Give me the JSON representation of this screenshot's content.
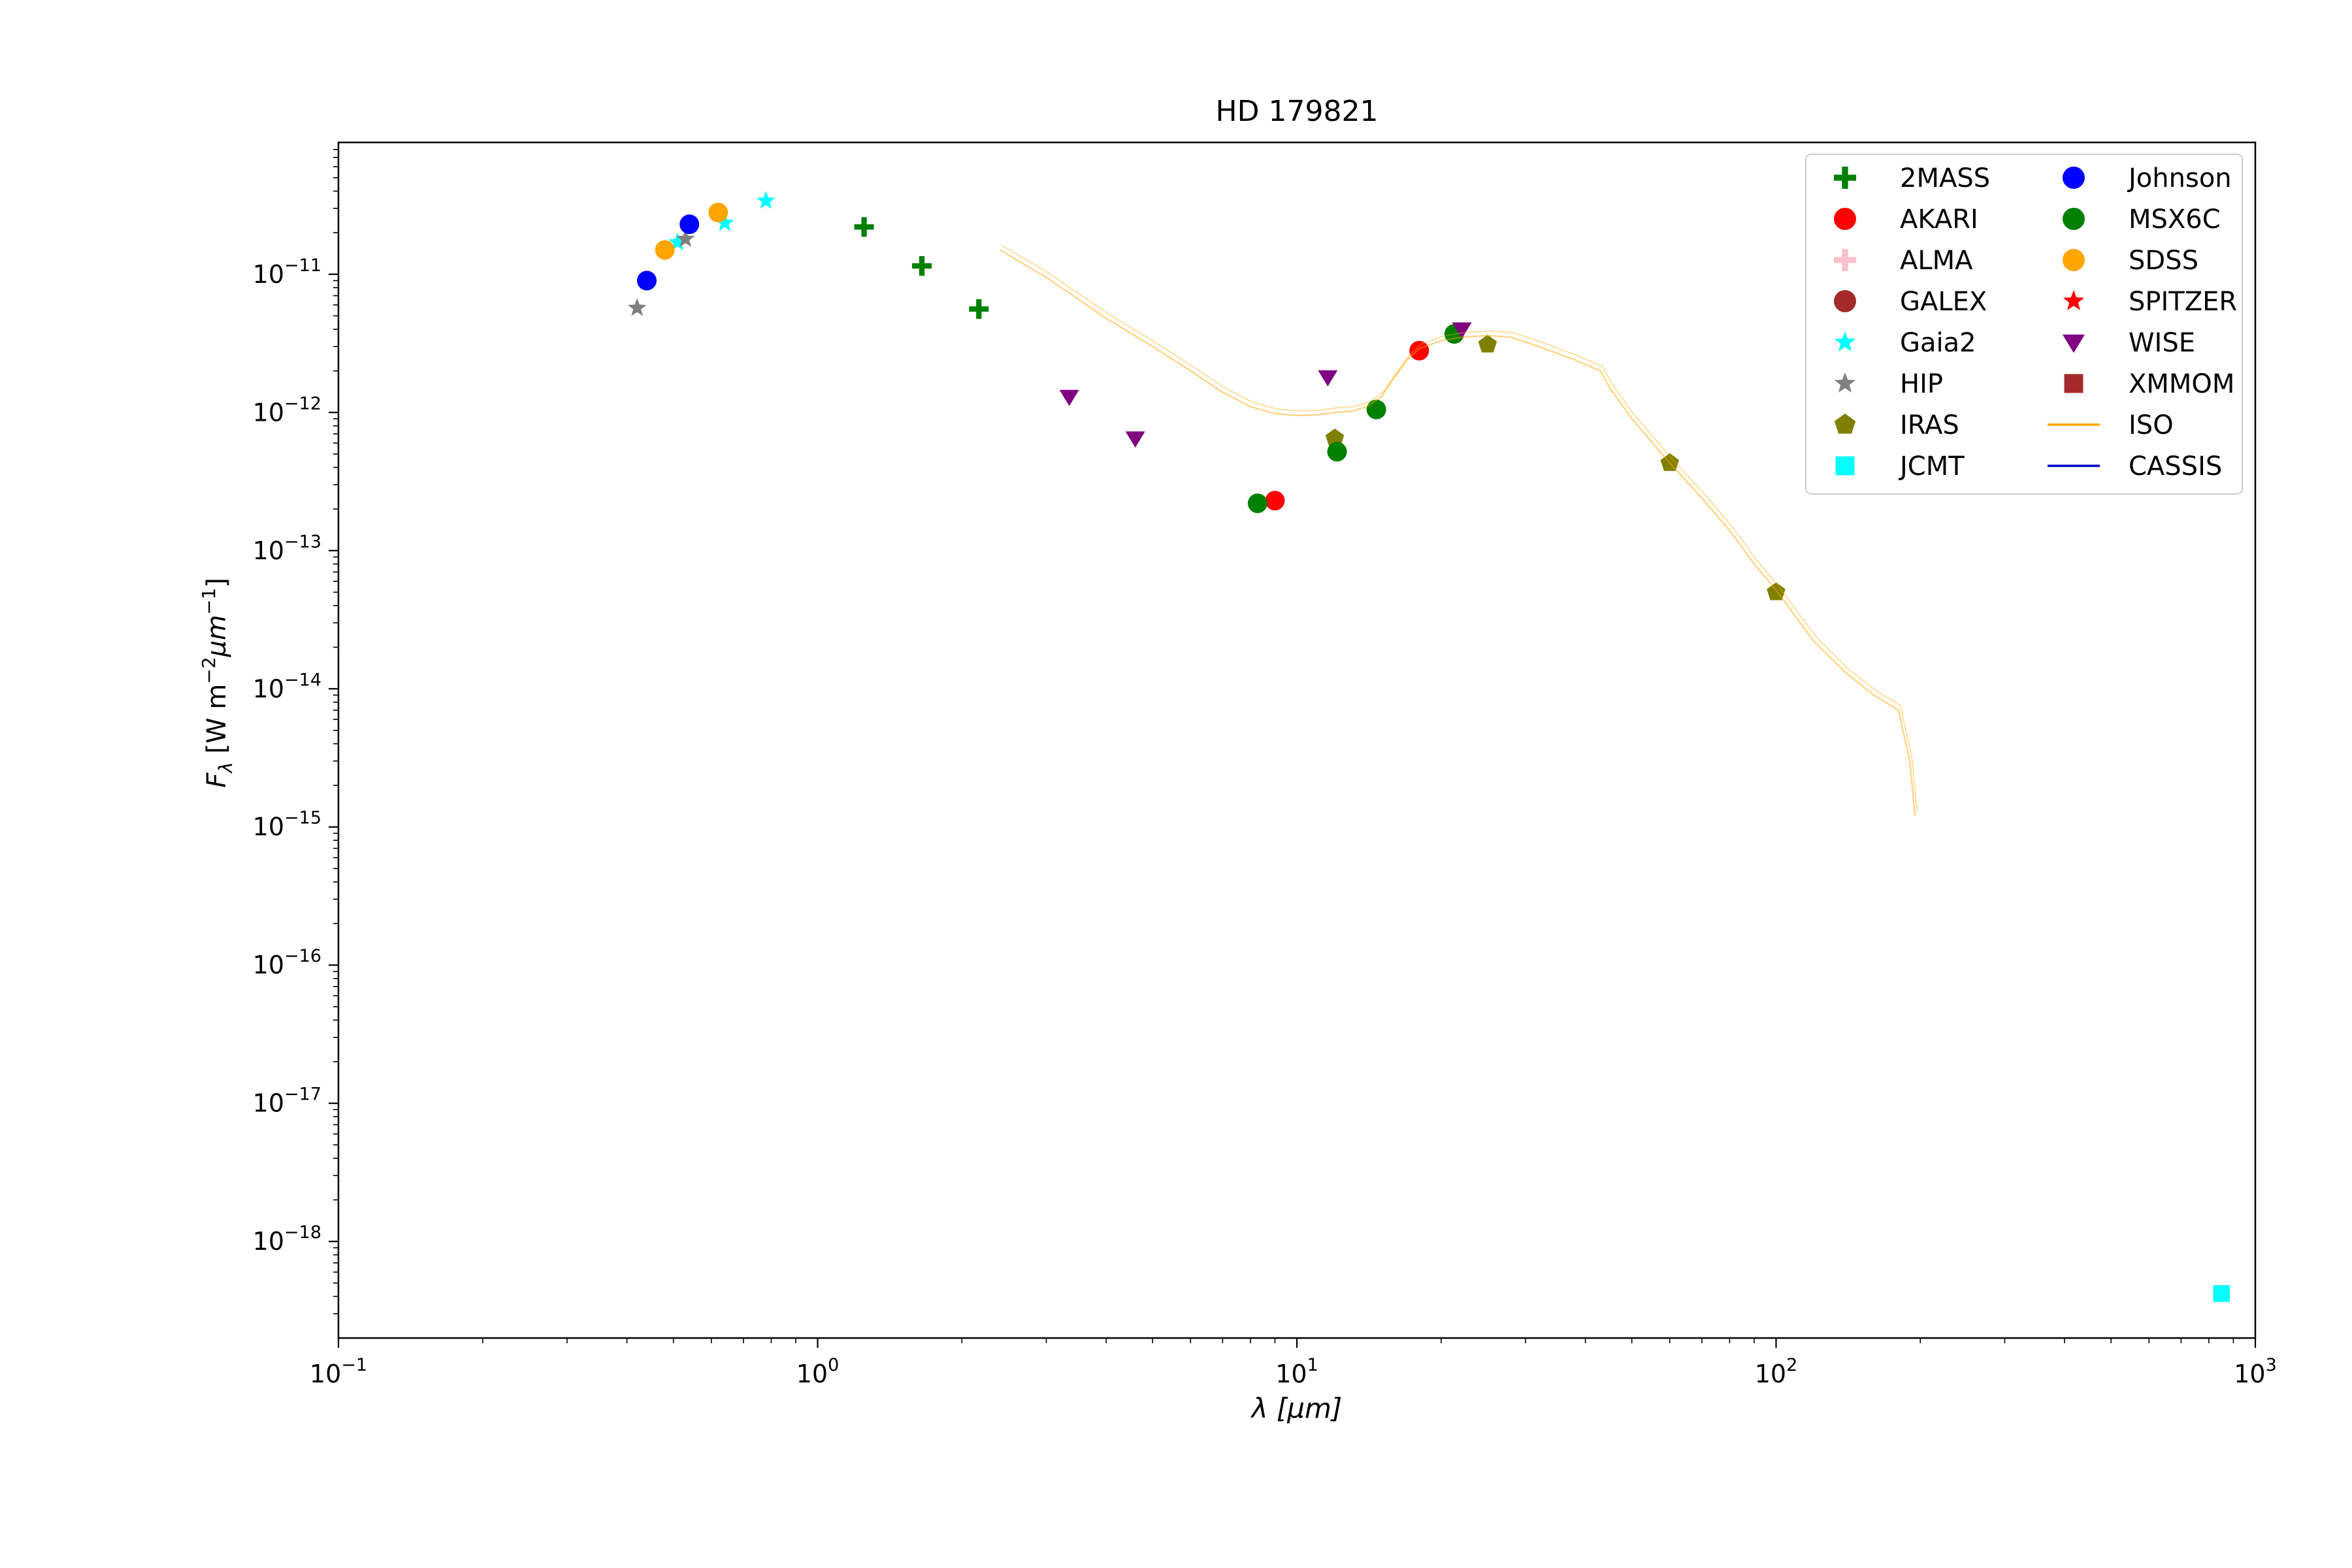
{
  "chart_data": {
    "type": "scatter",
    "title": "HD 179821",
    "xlabel": "λ [μm]",
    "ylabel": "F_λ [W m^-2 μm^-1]",
    "xscale": "log",
    "yscale": "log",
    "xlim": [
      0.1,
      1000
    ],
    "ylim": [
      2e-19,
      9e-11
    ],
    "x_ticks": [
      {
        "base": "10",
        "exp": "−1",
        "value": 0.1
      },
      {
        "base": "10",
        "exp": "0",
        "value": 1
      },
      {
        "base": "10",
        "exp": "1",
        "value": 10
      },
      {
        "base": "10",
        "exp": "2",
        "value": 100
      },
      {
        "base": "10",
        "exp": "3",
        "value": 1000
      }
    ],
    "y_ticks": [
      {
        "base": "10",
        "exp": "−18",
        "value": 1e-18
      },
      {
        "base": "10",
        "exp": "−17",
        "value": 1e-17
      },
      {
        "base": "10",
        "exp": "−16",
        "value": 1e-16
      },
      {
        "base": "10",
        "exp": "−15",
        "value": 1e-15
      },
      {
        "base": "10",
        "exp": "−14",
        "value": 1e-14
      },
      {
        "base": "10",
        "exp": "−13",
        "value": 1e-13
      },
      {
        "base": "10",
        "exp": "−12",
        "value": 1e-12
      },
      {
        "base": "10",
        "exp": "−11",
        "value": 1e-11
      }
    ],
    "legend_position": "top-right",
    "legend_columns": 2,
    "series": [
      {
        "name": "2MASS",
        "marker": "plus",
        "color": "#008000",
        "points": [
          [
            1.25,
            2.2e-11
          ],
          [
            1.65,
            1.15e-11
          ],
          [
            2.17,
            5.6e-12
          ]
        ]
      },
      {
        "name": "AKARI",
        "marker": "circle",
        "color": "#ff0000",
        "points": [
          [
            9.0,
            2.3e-13
          ],
          [
            18.0,
            2.8e-12
          ]
        ]
      },
      {
        "name": "ALMA",
        "marker": "plus",
        "color": "#ffc0cb",
        "points": []
      },
      {
        "name": "GALEX",
        "marker": "circle",
        "color": "#a52a2a",
        "points": []
      },
      {
        "name": "Gaia2",
        "marker": "star",
        "color": "#00ffff",
        "points": [
          [
            0.51,
            1.7e-11
          ],
          [
            0.64,
            2.35e-11
          ],
          [
            0.78,
            3.4e-11
          ]
        ]
      },
      {
        "name": "HIP",
        "marker": "star",
        "color": "#808080",
        "points": [
          [
            0.42,
            5.7e-12
          ],
          [
            0.53,
            1.8e-11
          ]
        ]
      },
      {
        "name": "IRAS",
        "marker": "pentagon",
        "color": "#808000",
        "points": [
          [
            12.0,
            6.5e-13
          ],
          [
            25.0,
            3.1e-12
          ],
          [
            60.0,
            4.3e-13
          ],
          [
            100.0,
            5e-14
          ]
        ]
      },
      {
        "name": "JCMT",
        "marker": "square",
        "color": "#00ffff",
        "points": [
          [
            850.0,
            4.2e-19
          ]
        ]
      },
      {
        "name": "Johnson",
        "marker": "circle",
        "color": "#0000ff",
        "points": [
          [
            0.44,
            9e-12
          ],
          [
            0.54,
            2.3e-11
          ]
        ]
      },
      {
        "name": "MSX6C",
        "marker": "circle",
        "color": "#008000",
        "points": [
          [
            8.28,
            2.2e-13
          ],
          [
            12.13,
            5.2e-13
          ],
          [
            14.65,
            1.05e-12
          ],
          [
            21.3,
            3.7e-12
          ]
        ]
      },
      {
        "name": "SDSS",
        "marker": "circle",
        "color": "#ffa500",
        "points": [
          [
            0.48,
            1.5e-11
          ],
          [
            0.62,
            2.8e-11
          ]
        ]
      },
      {
        "name": "SPITZER",
        "marker": "star",
        "color": "#ff0000",
        "points": []
      },
      {
        "name": "WISE",
        "marker": "triangle-down",
        "color": "#800080",
        "points": [
          [
            3.35,
            1.3e-12
          ],
          [
            4.6,
            6.5e-13
          ],
          [
            11.6,
            1.8e-12
          ],
          [
            22.1,
            4e-12
          ]
        ]
      },
      {
        "name": "XMMOM",
        "marker": "square",
        "color": "#a52a2a",
        "points": []
      },
      {
        "name": "ISO",
        "marker": "line",
        "color": "#ffa500",
        "points": [
          [
            2.4,
            1.5e-11
          ],
          [
            3.0,
            9.5e-12
          ],
          [
            4.0,
            4.8e-12
          ],
          [
            5.0,
            3e-12
          ],
          [
            6.0,
            2e-12
          ],
          [
            7.0,
            1.4e-12
          ],
          [
            8.0,
            1.1e-12
          ],
          [
            9.0,
            9.8e-13
          ],
          [
            10.0,
            9.5e-13
          ],
          [
            11.0,
            9.6e-13
          ],
          [
            12.0,
            1e-12
          ],
          [
            13.0,
            1.02e-12
          ],
          [
            14.0,
            1.1e-12
          ],
          [
            15.0,
            1.3e-12
          ],
          [
            16.0,
            1.8e-12
          ],
          [
            17.0,
            2.4e-12
          ],
          [
            18.0,
            2.9e-12
          ],
          [
            20.0,
            3.3e-12
          ],
          [
            22.0,
            3.5e-12
          ],
          [
            25.0,
            3.6e-12
          ],
          [
            28.0,
            3.5e-12
          ],
          [
            32.0,
            3e-12
          ],
          [
            38.0,
            2.4e-12
          ],
          [
            43.0,
            2e-12
          ],
          [
            45.0,
            1.5e-12
          ],
          [
            50.0,
            9e-13
          ],
          [
            60.0,
            4.3e-13
          ],
          [
            70.0,
            2.4e-13
          ],
          [
            80.0,
            1.4e-13
          ],
          [
            90.0,
            8e-14
          ],
          [
            100.0,
            5.2e-14
          ],
          [
            110.0,
            3.3e-14
          ],
          [
            120.0,
            2.2e-14
          ],
          [
            140.0,
            1.3e-14
          ],
          [
            160.0,
            9e-15
          ],
          [
            180.0,
            7e-15
          ],
          [
            190.0,
            3e-15
          ],
          [
            195.0,
            1.2e-15
          ]
        ]
      },
      {
        "name": "CASSIS",
        "marker": "line",
        "color": "#0000cd",
        "points": []
      }
    ]
  }
}
